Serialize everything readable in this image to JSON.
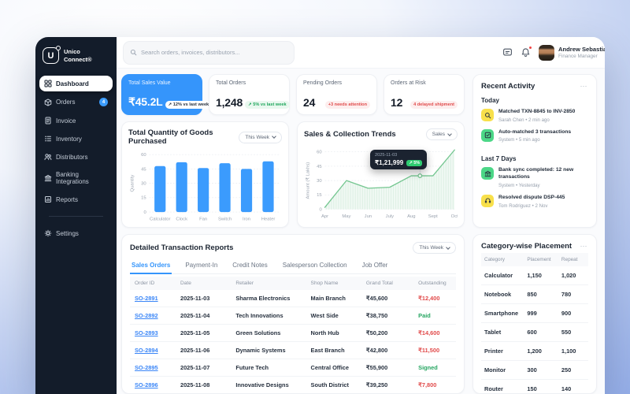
{
  "brand": {
    "line1": "Unico",
    "line2": "Connect®"
  },
  "sidebar": {
    "items": [
      {
        "label": "Dashboard"
      },
      {
        "label": "Orders",
        "badge": "4"
      },
      {
        "label": "Invoice"
      },
      {
        "label": "Inventory"
      },
      {
        "label": "Distributors"
      },
      {
        "label": "Banking Integrations"
      },
      {
        "label": "Reports"
      },
      {
        "label": "Settings"
      }
    ]
  },
  "topbar": {
    "search_placeholder": "Search orders, invoices, distributors...",
    "user": {
      "name": "Andrew Sebastian",
      "role": "Finance Manager"
    }
  },
  "kpis": [
    {
      "label": "Total Sales Value",
      "value": "₹45.2L",
      "trend": "↗ 12% vs last week"
    },
    {
      "label": "Total Orders",
      "value": "1,248",
      "trend": "↗ 5% vs last week"
    },
    {
      "label": "Pending Orders",
      "value": "24",
      "trend": "+3 needs attention"
    },
    {
      "label": "Orders at Risk",
      "value": "12",
      "trend": "4 delayed shipment"
    }
  ],
  "chart_data": [
    {
      "type": "bar",
      "title": "Total Quantity of Goods Purchased",
      "filter_label": "This Week",
      "ylabel": "Quantity",
      "yticks": [
        0,
        15,
        30,
        45,
        60
      ],
      "ylim": [
        0,
        60
      ],
      "categories": [
        "Calculator",
        "Clock",
        "Fan",
        "Switch",
        "Iron",
        "Heater"
      ],
      "values": [
        48,
        52,
        46,
        51,
        45,
        53
      ],
      "bar_color": "#3b9bfd",
      "grid": true,
      "legend": "none"
    },
    {
      "type": "area",
      "title": "Sales & Collection Trends",
      "filter_label": "Sales",
      "ylabel": "Amount (₹ Lakhs)",
      "yticks": [
        0,
        15,
        30,
        45,
        60
      ],
      "ylim": [
        0,
        60
      ],
      "x": [
        "Apr",
        "May",
        "Jun",
        "July",
        "Aug",
        "Sept",
        "Oct"
      ],
      "values": [
        2,
        30,
        22,
        23,
        35,
        35,
        62
      ],
      "line_color": "#74c690",
      "marker_pos": 4.4,
      "marker_value": 35,
      "tooltip": {
        "date": "2025-11-03",
        "value": "₹1,21,999",
        "trend": "↗ 5%"
      },
      "grid": true,
      "legend": "none"
    }
  ],
  "activity": {
    "title": "Recent Activity",
    "menu_icon": "⋯",
    "sections": [
      {
        "heading": "Today",
        "items": [
          {
            "icon": "search-match-icon",
            "color": "yellow",
            "text": "Matched TXN-8845 to INV-2850",
            "meta": "Sarah Chen • 2 min ago"
          },
          {
            "icon": "auto-match-icon",
            "color": "green",
            "text": "Auto-matched 3 transactions",
            "meta": "System • 5 min ago"
          }
        ]
      },
      {
        "heading": "Last 7 Days",
        "items": [
          {
            "icon": "bank-sync-icon",
            "color": "green",
            "text": "Bank sync completed: 12 new transactions",
            "meta": "System • Yesterday"
          },
          {
            "icon": "dispute-resolved-icon",
            "color": "yellow",
            "text": "Resolved dispute DSP-445",
            "meta": "Tom Rodriguez • 2 Nov"
          }
        ]
      }
    ]
  },
  "transactions": {
    "title": "Detailed Transaction Reports",
    "filter_label": "This Week",
    "tabs": [
      "Sales Orders",
      "Payment-In",
      "Credit Notes",
      "Salesperson Collection",
      "Job Offer"
    ],
    "active_tab": "Sales Orders",
    "columns": [
      "Order ID",
      "Date",
      "Retailer",
      "Shop Name",
      "Grand Total",
      "Outstanding"
    ],
    "rows": [
      {
        "order_id": "SO-2891",
        "date": "2025-11-03",
        "retailer": "Sharma Electronics",
        "shop_name": "Main Branch",
        "grand_total": "₹45,600",
        "outstanding": "₹12,400"
      },
      {
        "order_id": "SO-2892",
        "date": "2025-11-04",
        "retailer": "Tech Innovations",
        "shop_name": "West Side",
        "grand_total": "₹38,750",
        "outstanding": "Paid"
      },
      {
        "order_id": "SO-2893",
        "date": "2025-11-05",
        "retailer": "Green Solutions",
        "shop_name": "North Hub",
        "grand_total": "₹50,200",
        "outstanding": "₹14,600"
      },
      {
        "order_id": "SO-2894",
        "date": "2025-11-06",
        "retailer": "Dynamic Systems",
        "shop_name": "East Branch",
        "grand_total": "₹42,800",
        "outstanding": "₹11,500"
      },
      {
        "order_id": "SO-2895",
        "date": "2025-11-07",
        "retailer": "Future Tech",
        "shop_name": "Central Office",
        "grand_total": "₹55,900",
        "outstanding": "Signed"
      },
      {
        "order_id": "SO-2896",
        "date": "2025-11-08",
        "retailer": "Innovative Designs",
        "shop_name": "South District",
        "grand_total": "₹39,250",
        "outstanding": "₹7,800"
      }
    ]
  },
  "placement": {
    "title": "Category-wise Placement",
    "menu_icon": "⋯",
    "columns": [
      "Category",
      "Placement",
      "Repeat"
    ],
    "rows": [
      {
        "category": "Calculator",
        "placement": "1,150",
        "repeat": "1,020"
      },
      {
        "category": "Notebook",
        "placement": "850",
        "repeat": "780"
      },
      {
        "category": "Smartphone",
        "placement": "999",
        "repeat": "900"
      },
      {
        "category": "Tablet",
        "placement": "600",
        "repeat": "550"
      },
      {
        "category": "Printer",
        "placement": "1,200",
        "repeat": "1,100"
      },
      {
        "category": "Monitor",
        "placement": "300",
        "repeat": "250"
      },
      {
        "category": "Router",
        "placement": "150",
        "repeat": "140"
      }
    ]
  }
}
